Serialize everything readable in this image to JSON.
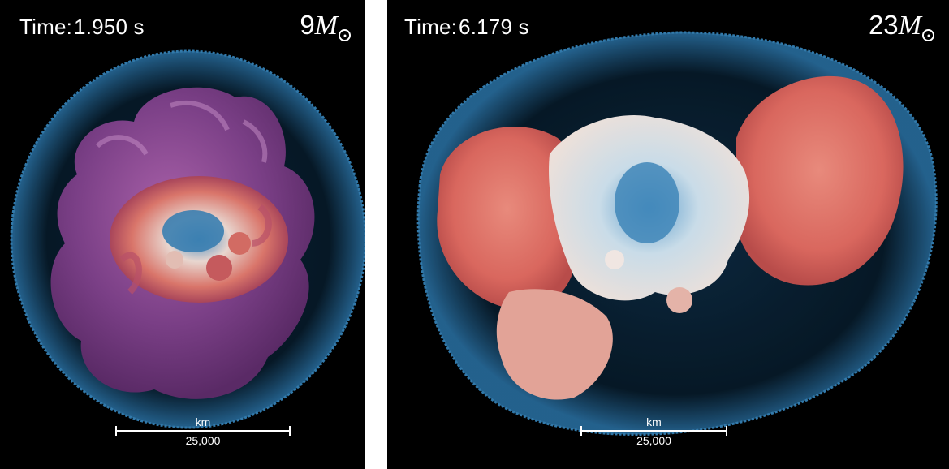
{
  "panels": [
    {
      "time_label": "Time:",
      "time_value": "1.950 s",
      "mass_value": "9",
      "mass_symbol": "M",
      "scale_unit": "km",
      "scale_value": "25,000",
      "palette": {
        "shell": "#2f7fb8",
        "outer": "#7a3f86",
        "mid": "#c9665a",
        "core": "#6fa9cf"
      }
    },
    {
      "time_label": "Time:",
      "time_value": "6.179 s",
      "mass_value": "23",
      "mass_symbol": "M",
      "scale_unit": "km",
      "scale_value": "25,000",
      "palette": {
        "shell": "#2f7fb8",
        "outer": "#d9675e",
        "mid": "#e8d8d2",
        "core": "#6fa9cf"
      }
    }
  ]
}
